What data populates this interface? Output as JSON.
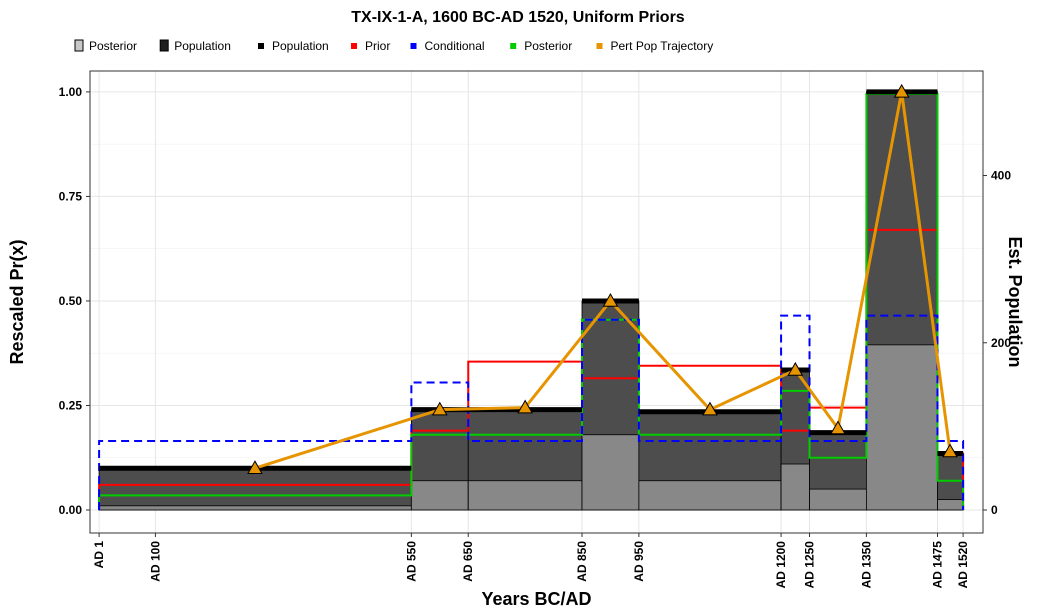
{
  "chart_data": {
    "type": "area",
    "title": "TX-IX-1-A,   1600 BC-AD 1520,   Uniform Priors",
    "xlabel": "Years BC/AD",
    "ylabel": "Rescaled Pr(x)",
    "y2label": "Est. Population",
    "xlim": [
      -15,
      1555
    ],
    "ylim": [
      -0.055,
      1.05
    ],
    "y2lim": [
      -27.5,
      525
    ],
    "x_ticks": [
      {
        "value": 1,
        "label": "AD 1"
      },
      {
        "value": 100,
        "label": "AD 100"
      },
      {
        "value": 550,
        "label": "AD 550"
      },
      {
        "value": 650,
        "label": "AD 650"
      },
      {
        "value": 850,
        "label": "AD 850"
      },
      {
        "value": 950,
        "label": "AD 950"
      },
      {
        "value": 1200,
        "label": "AD 1200"
      },
      {
        "value": 1250,
        "label": "AD 1250"
      },
      {
        "value": 1350,
        "label": "AD 1350"
      },
      {
        "value": 1475,
        "label": "AD 1475"
      },
      {
        "value": 1520,
        "label": "AD 1520"
      }
    ],
    "y_ticks": [
      {
        "value": 0,
        "label": "0.00"
      },
      {
        "value": 0.25,
        "label": "0.25"
      },
      {
        "value": 0.5,
        "label": "0.50"
      },
      {
        "value": 0.75,
        "label": "0.75"
      },
      {
        "value": 1.0,
        "label": "1.00"
      }
    ],
    "y2_ticks": [
      {
        "value": 0,
        "label": "0"
      },
      {
        "value": 200,
        "label": "200"
      },
      {
        "value": 400,
        "label": "400"
      }
    ],
    "grid": true,
    "legend_position": "top-left",
    "legend_fill": [
      {
        "name": "Posterior",
        "color": "#c8c8c8"
      },
      {
        "name": "Population",
        "color": "#1e1e1e"
      }
    ],
    "legend_lines": [
      {
        "name": "Population",
        "color": "#000000"
      },
      {
        "name": "Prior",
        "color": "#ff0000"
      },
      {
        "name": "Conditional",
        "color": "#0000ff"
      },
      {
        "name": "Posterior",
        "color": "#00cc00"
      },
      {
        "name": "Pert Pop Trajectory",
        "color": "#e69500"
      }
    ],
    "colors": {
      "population_fill": "#4d4d4d",
      "posterior_fill": "#888888",
      "population_line": "#000000",
      "prior": "#ff0000",
      "conditional": "#0000ff",
      "posterior_line": "#00cc00",
      "trajectory": "#e69500",
      "grid": "#e6e6e6",
      "panel_border": "#333333"
    },
    "periods": [
      {
        "start": 1,
        "end": 550,
        "population": 0.1,
        "posterior_fill": 0.01,
        "prior": 0.06,
        "conditional": 0.165,
        "posterior": 0.035
      },
      {
        "start": 550,
        "end": 650,
        "population": 0.24,
        "posterior_fill": 0.07,
        "prior": 0.19,
        "conditional": 0.305,
        "posterior": 0.18
      },
      {
        "start": 650,
        "end": 850,
        "population": 0.24,
        "posterior_fill": 0.07,
        "prior": 0.355,
        "conditional": 0.165,
        "posterior": 0.18
      },
      {
        "start": 850,
        "end": 950,
        "population": 0.5,
        "posterior_fill": 0.18,
        "prior": 0.315,
        "conditional": 0.455,
        "posterior": 0.455
      },
      {
        "start": 950,
        "end": 1200,
        "population": 0.235,
        "posterior_fill": 0.07,
        "prior": 0.345,
        "conditional": 0.165,
        "posterior": 0.18
      },
      {
        "start": 1200,
        "end": 1250,
        "population": 0.335,
        "posterior_fill": 0.11,
        "prior": 0.19,
        "conditional": 0.465,
        "posterior": 0.285
      },
      {
        "start": 1250,
        "end": 1350,
        "population": 0.185,
        "posterior_fill": 0.05,
        "prior": 0.245,
        "conditional": 0.165,
        "posterior": 0.125
      },
      {
        "start": 1350,
        "end": 1475,
        "population": 1.0,
        "posterior_fill": 0.395,
        "prior": 0.67,
        "conditional": 0.465,
        "posterior": 0.995
      },
      {
        "start": 1475,
        "end": 1520,
        "population": 0.135,
        "posterior_fill": 0.025,
        "prior": 0.135,
        "conditional": 0.165,
        "posterior": 0.07
      }
    ],
    "trajectory": [
      {
        "x": 275,
        "y": 0.1
      },
      {
        "x": 600,
        "y": 0.24
      },
      {
        "x": 750,
        "y": 0.245
      },
      {
        "x": 900,
        "y": 0.5
      },
      {
        "x": 1075,
        "y": 0.24
      },
      {
        "x": 1225,
        "y": 0.335
      },
      {
        "x": 1300,
        "y": 0.195
      },
      {
        "x": 1412,
        "y": 1.0
      },
      {
        "x": 1497,
        "y": 0.14
      }
    ]
  }
}
